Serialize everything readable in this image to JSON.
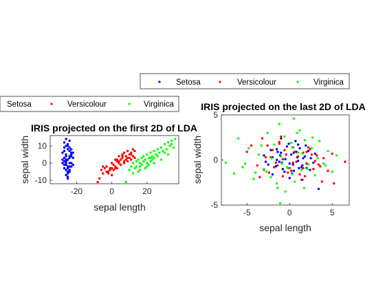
{
  "colors": {
    "setosa": "#0000ff",
    "versicolour": "#ff0000",
    "virginica": "#00ff00",
    "axis": "#262626"
  },
  "chart_data": [
    {
      "type": "scatter",
      "title": "IRIS projected on the first 2D of LDA",
      "xlabel": "sepal length",
      "ylabel": "sepal width",
      "xlim": [
        -35,
        38
      ],
      "ylim": [
        -12,
        16
      ],
      "xticks": [
        -20,
        0,
        20
      ],
      "yticks": [
        -10,
        0,
        10
      ],
      "grid": false,
      "legend": "above-left",
      "series": [
        {
          "name": "Setosa",
          "color": "#0000ff",
          "x": [
            -27,
            -26,
            -25,
            -28,
            -24,
            -26,
            -27,
            -23,
            -25,
            -26,
            -28,
            -24,
            -22,
            -25,
            -27,
            -26,
            -24,
            -25,
            -23,
            -26,
            -27,
            -28,
            -25,
            -24,
            -26,
            -23,
            -25,
            -22,
            -26,
            -27,
            -24,
            -25,
            -26,
            -23,
            -24,
            -26,
            -25,
            -27,
            -24,
            -22,
            -25,
            -26,
            -23,
            -24,
            -25,
            -27,
            -26,
            -24,
            -25,
            -23
          ],
          "y": [
            12,
            10,
            8,
            6,
            7,
            5,
            3,
            4,
            2,
            1,
            0,
            0,
            -1,
            -2,
            -3,
            -4,
            -5,
            -6,
            -2,
            -7,
            9,
            2,
            11,
            3,
            -1,
            5,
            -8,
            6,
            14,
            1,
            4,
            -3,
            2,
            8,
            -2,
            0,
            -5,
            7,
            13,
            3,
            -9,
            1,
            6,
            -4,
            10,
            -1,
            4,
            9,
            -6,
            0
          ]
        },
        {
          "name": "Versicolour",
          "color": "#ff0000",
          "x": [
            -8,
            -6,
            -5,
            -4,
            -3,
            -2,
            -1,
            0,
            0,
            1,
            2,
            2,
            3,
            3,
            4,
            4,
            5,
            5,
            6,
            6,
            7,
            7,
            8,
            8,
            9,
            9,
            10,
            10,
            11,
            11,
            12,
            12,
            13,
            13,
            -7,
            -5,
            -3,
            -1,
            1,
            3,
            5,
            7,
            9,
            11,
            -2,
            0,
            2,
            4,
            6,
            8
          ],
          "y": [
            -11,
            -4,
            -6,
            -3,
            -2,
            -5,
            -4,
            -3,
            0,
            -1,
            -2,
            2,
            1,
            -3,
            0,
            4,
            2,
            -1,
            3,
            5,
            0,
            6,
            2,
            4,
            1,
            7,
            3,
            5,
            2,
            6,
            4,
            8,
            3,
            7,
            -9,
            -2,
            -5,
            -3,
            -4,
            2,
            -1,
            1,
            3,
            5,
            -6,
            -7,
            -3,
            1,
            4,
            2
          ]
        },
        {
          "name": "Virginica",
          "color": "#00ff00",
          "x": [
            8,
            10,
            11,
            12,
            13,
            14,
            15,
            15,
            16,
            16,
            17,
            17,
            18,
            18,
            19,
            19,
            20,
            20,
            21,
            21,
            22,
            22,
            23,
            23,
            24,
            24,
            25,
            26,
            27,
            28,
            29,
            30,
            31,
            32,
            33,
            34,
            35,
            36,
            12,
            14,
            16,
            18,
            20,
            22,
            24,
            26,
            28,
            30,
            32,
            34
          ],
          "y": [
            -11,
            -4,
            -2,
            0,
            -3,
            1,
            -5,
            2,
            0,
            -2,
            3,
            -1,
            1,
            4,
            -3,
            2,
            0,
            5,
            3,
            -1,
            6,
            1,
            4,
            2,
            7,
            3,
            5,
            8,
            6,
            9,
            7,
            11,
            8,
            12,
            10,
            13,
            9,
            14,
            -6,
            -2,
            -4,
            1,
            -2,
            3,
            0,
            4,
            2,
            6,
            5,
            11
          ]
        }
      ]
    },
    {
      "type": "scatter",
      "title": "IRIS projected on the last 2D of LDA",
      "xlabel": "sepal length",
      "ylabel": "sepal width",
      "xlim": [
        -8,
        7
      ],
      "ylim": [
        -5,
        5
      ],
      "xticks": [
        -5,
        0,
        5
      ],
      "yticks": [
        -5,
        0,
        5
      ],
      "grid": false,
      "legend": "above",
      "series": [
        {
          "name": "Setosa",
          "color": "#0000ff",
          "x": [
            -3,
            -2.5,
            -2,
            -1.8,
            -1.5,
            -1.2,
            -1,
            -0.8,
            -0.5,
            -0.3,
            0,
            0.2,
            0.5,
            0.8,
            1,
            1.2,
            1.5,
            1.8,
            2,
            2.2,
            2.5,
            2.8,
            3,
            -2.8,
            -2.2,
            -1.6,
            -1.1,
            -0.6,
            -0.1,
            0.4,
            0.9,
            1.4,
            1.9,
            2.4,
            3.4,
            -1.4,
            -0.9,
            -0.4,
            0.3,
            0.7,
            1.1,
            1.6,
            -2,
            -1,
            0,
            1,
            2,
            -1.5,
            0.5,
            1.5
          ],
          "y": [
            0.5,
            -0.5,
            0.3,
            -0.8,
            1.2,
            -0.2,
            0.8,
            -1,
            0.1,
            1.5,
            -0.4,
            0.6,
            -1.2,
            0.9,
            -0.1,
            1.3,
            -0.6,
            0.4,
            -0.9,
            1,
            0.2,
            -0.3,
            0.7,
            -0.2,
            1.1,
            -0.7,
            0.5,
            -1.3,
            1.8,
            -0.5,
            0.3,
            -0.8,
            1.6,
            -1.1,
            -3.2,
            0.9,
            -0.3,
            0.6,
            -1.5,
            2.1,
            -0.9,
            0.2,
            -1.6,
            2.4,
            -2,
            1.7,
            -0.4,
            0,
            0.8,
            -2.2
          ]
        },
        {
          "name": "Versicolour",
          "color": "#ff0000",
          "x": [
            -5,
            -4.5,
            -3.8,
            -3.2,
            -2.8,
            -2.4,
            -2,
            -1.6,
            -1.2,
            -0.8,
            -0.4,
            0,
            0.4,
            0.8,
            1.2,
            1.6,
            2,
            2.4,
            2.8,
            3.2,
            3.6,
            4,
            4.5,
            5,
            6.5,
            -3.5,
            -2.6,
            -1.8,
            -1,
            -0.2,
            0.6,
            1.4,
            2.2,
            3,
            3.8,
            -2.2,
            -1.4,
            -0.6,
            0.2,
            1,
            1.8,
            2.6,
            3.4,
            -1.2,
            0.4,
            2,
            -3,
            -0.8,
            1.6,
            5.2
          ],
          "y": [
            0.9,
            1.6,
            -0.6,
            2.4,
            0.3,
            -1.4,
            1.1,
            -0.3,
            2,
            -1.8,
            0.6,
            -0.9,
            1.4,
            -0.2,
            -1.6,
            0.8,
            -0.4,
            1.2,
            -1,
            0.5,
            -0.7,
            0.2,
            -1.2,
            0.7,
            -0.2,
            -1.9,
            1.6,
            -0.8,
            2.6,
            -1.4,
            0.9,
            -2.2,
            1.4,
            -0.1,
            -2.4,
            0.3,
            -0.6,
            1.1,
            -1.2,
            0.4,
            -1.8,
            0.6,
            -0.5,
            1.8,
            -0.3,
            0.9,
            -1.1,
            0.1,
            -0.9,
            -2.6
          ]
        },
        {
          "name": "Virginica",
          "color": "#00ff00",
          "x": [
            -7.5,
            -6.5,
            -6,
            -5.5,
            -4.8,
            -4.2,
            -3.6,
            -3,
            -2.6,
            -2.2,
            -1.8,
            -1.4,
            -1,
            -0.6,
            -0.2,
            0.2,
            0.6,
            1,
            1.4,
            1.8,
            2.2,
            2.6,
            3,
            3.5,
            4,
            4.5,
            5,
            5.5,
            -5.2,
            -4,
            -3.3,
            -2.7,
            -2.1,
            -1.5,
            -0.9,
            -0.3,
            0.3,
            0.9,
            1.5,
            2.1,
            2.7,
            3.3,
            4.2,
            -1.1,
            -0.5,
            0.5,
            1.2,
            1.7,
            -1.2,
            0.3
          ],
          "y": [
            -0.3,
            -1.5,
            2.4,
            -0.8,
            1.3,
            -2.1,
            0.6,
            -1,
            3,
            -1.9,
            1.7,
            -3.1,
            0.4,
            2.6,
            -0.9,
            1.9,
            -2.4,
            0.8,
            -1.1,
            2.2,
            -0.5,
            1.3,
            -1.7,
            2.1,
            -0.4,
            1,
            -1.3,
            0.5,
            -0.4,
            -1.4,
            1.6,
            -1.3,
            0.2,
            -2.6,
            -0.4,
            -0.8,
            -1.6,
            3,
            0.7,
            -1,
            2.5,
            0.2,
            -0.6,
            -4.8,
            -3.5,
            4.6,
            3.3,
            -3.1,
            4,
            1.4
          ]
        }
      ]
    }
  ]
}
